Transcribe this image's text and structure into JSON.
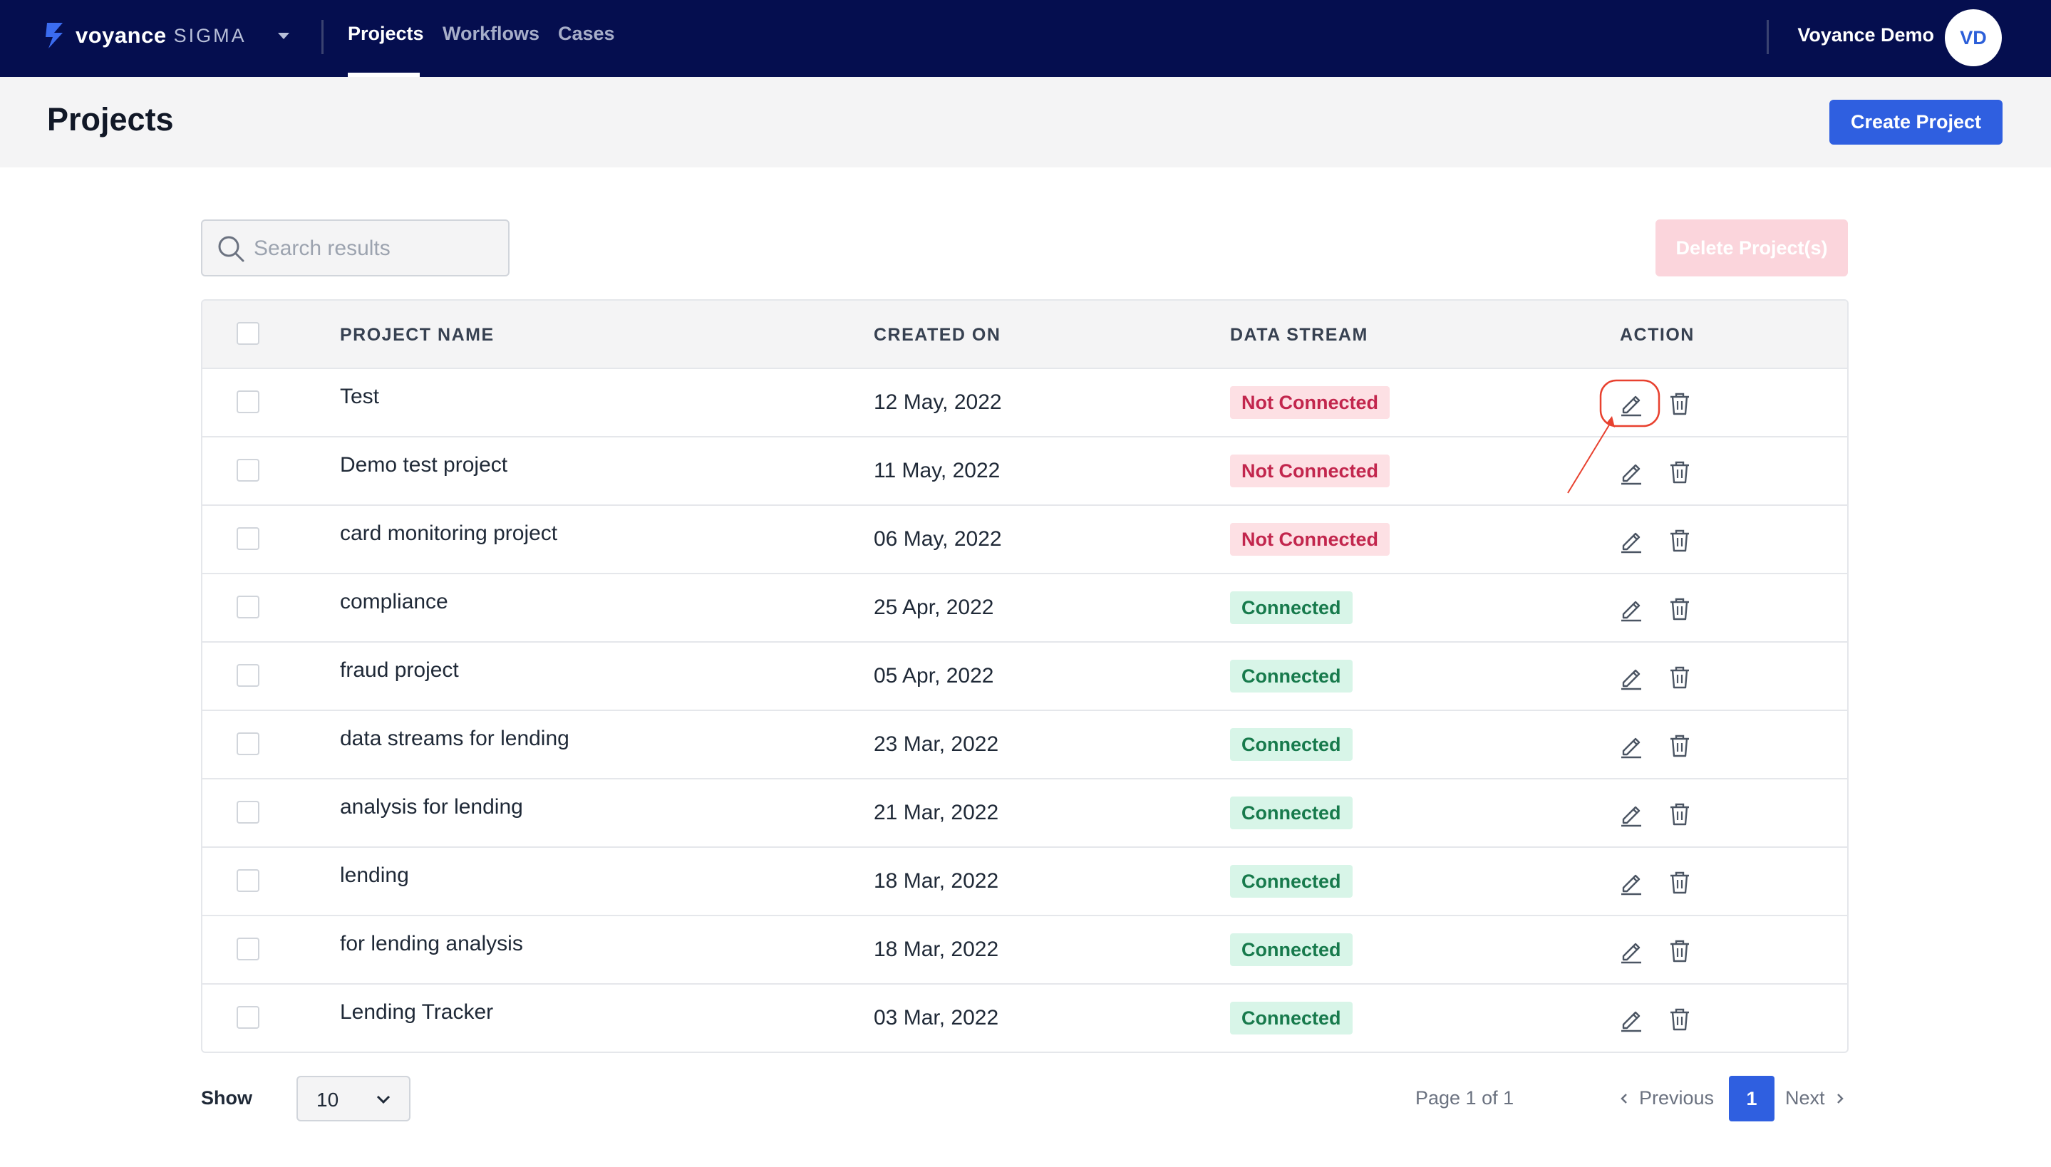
{
  "brand": {
    "name": "voyance",
    "product": "SIGMA"
  },
  "nav": {
    "links": [
      {
        "label": "Projects",
        "active": true
      },
      {
        "label": "Workflows",
        "active": false
      },
      {
        "label": "Cases",
        "active": false
      }
    ]
  },
  "user": {
    "name": "Voyance Demo",
    "initials": "VD"
  },
  "header": {
    "title": "Projects",
    "create_label": "Create Project"
  },
  "search": {
    "placeholder": "Search results",
    "value": ""
  },
  "delete_label": "Delete Project(s)",
  "table": {
    "columns": [
      "PROJECT NAME",
      "CREATED ON",
      "DATA STREAM",
      "ACTION"
    ],
    "rows": [
      {
        "name": "Test",
        "created": "12 May, 2022",
        "stream": "Not Connected"
      },
      {
        "name": "Demo test project",
        "created": "11 May, 2022",
        "stream": "Not Connected"
      },
      {
        "name": "card monitoring project",
        "created": "06 May, 2022",
        "stream": "Not Connected"
      },
      {
        "name": "compliance",
        "created": "25 Apr, 2022",
        "stream": "Connected"
      },
      {
        "name": "fraud project",
        "created": "05 Apr, 2022",
        "stream": "Connected"
      },
      {
        "name": "data streams for lending",
        "created": "23 Mar, 2022",
        "stream": "Connected"
      },
      {
        "name": "analysis for lending",
        "created": "21 Mar, 2022",
        "stream": "Connected"
      },
      {
        "name": "lending",
        "created": "18 Mar, 2022",
        "stream": "Connected"
      },
      {
        "name": "for lending analysis",
        "created": "18 Mar, 2022",
        "stream": "Connected"
      },
      {
        "name": "Lending Tracker",
        "created": "03 Mar, 2022",
        "stream": "Connected"
      }
    ]
  },
  "footer": {
    "show_label": "Show",
    "page_size": "10",
    "page_info": "Page 1 of 1",
    "previous_label": "Previous",
    "current_page": "1",
    "next_label": "Next"
  },
  "colors": {
    "navbar": "#050e4f",
    "accent": "#2f5fe0",
    "not_connected": "#c2264d",
    "connected": "#177a4c",
    "annotation": "#e8412f"
  }
}
